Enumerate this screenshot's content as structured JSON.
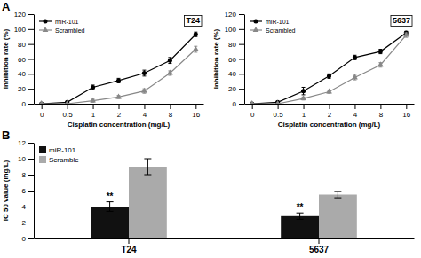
{
  "chart_data": [
    {
      "type": "line",
      "title": "T24",
      "annotations": [
        {
          "text": "A"
        }
      ],
      "x_label": "Cisplatin concentration (mg/L)",
      "y_label": "Inhibition rate (%)",
      "categories": [
        "0",
        "0.5",
        "1",
        "2",
        "4",
        "8",
        "16"
      ],
      "series": [
        {
          "name": "miR-101",
          "color": "#000000",
          "marker": "circle",
          "values": [
            0,
            2,
            22,
            31,
            41,
            58,
            93
          ],
          "errors": [
            0,
            1,
            3,
            3,
            4,
            4,
            3
          ]
        },
        {
          "name": "Scrambled",
          "color": "#888888",
          "marker": "triangle",
          "values": [
            0,
            0,
            4,
            9,
            17,
            41,
            73
          ],
          "errors": [
            0,
            0.5,
            2,
            2,
            3,
            3,
            4
          ]
        }
      ],
      "ylim": [
        0,
        120
      ],
      "yticks": [
        0,
        20,
        40,
        60,
        80,
        100,
        120
      ],
      "legend": "upper left"
    },
    {
      "type": "line",
      "title": "5637",
      "x_label": "Cisplatin concentration (mg/L)",
      "y_label": "Inhibition rate (%)",
      "categories": [
        "0",
        "0.5",
        "1",
        "2",
        "4",
        "8",
        "16"
      ],
      "series": [
        {
          "name": "miR-101",
          "color": "#000000",
          "marker": "circle",
          "values": [
            0,
            2,
            17,
            37,
            62,
            70,
            95
          ],
          "errors": [
            0,
            1,
            5,
            3,
            3,
            3,
            2
          ]
        },
        {
          "name": "Scrambled",
          "color": "#888888",
          "marker": "triangle",
          "values": [
            0,
            0,
            7,
            16,
            35,
            52,
            92
          ],
          "errors": [
            0,
            0.5,
            2,
            2,
            3,
            3,
            3
          ]
        }
      ],
      "ylim": [
        0,
        120
      ],
      "yticks": [
        0,
        20,
        40,
        60,
        80,
        100,
        120
      ],
      "legend": "upper left"
    },
    {
      "type": "bar",
      "annotations": [
        {
          "text": "B"
        },
        {
          "text": "**",
          "x": "T24",
          "series": "miR-101"
        },
        {
          "text": "**",
          "x": "5637",
          "series": "miR-101"
        }
      ],
      "y_label": "IC 50 value (mg/L)",
      "categories": [
        "T24",
        "5637"
      ],
      "series": [
        {
          "name": "miR-101",
          "color": "#111111",
          "values": [
            4.0,
            2.8
          ],
          "errors": [
            0.6,
            0.4
          ]
        },
        {
          "name": "Scramble",
          "color": "#aaaaaa",
          "values": [
            9.0,
            5.5
          ],
          "errors": [
            1.0,
            0.4
          ]
        }
      ],
      "ylim": [
        0,
        12
      ],
      "yticks": [
        0,
        2,
        4,
        6,
        8,
        10,
        12
      ],
      "legend": "upper left"
    }
  ]
}
